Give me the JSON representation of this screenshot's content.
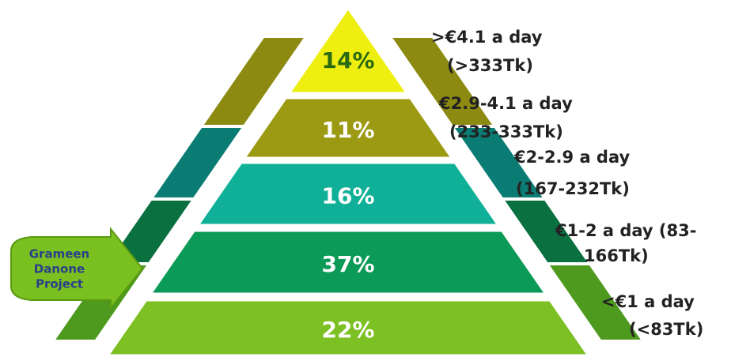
{
  "tiers": [
    {
      "percent": "14%",
      "income": [
        ">€4.1 a day",
        "(>333Tk)"
      ]
    },
    {
      "percent": "11%",
      "income": [
        "€2.9-4.1 a day",
        "(233-333Tk)"
      ]
    },
    {
      "percent": "16%",
      "income": [
        "€2-2.9 a day",
        "(167-232Tk)"
      ]
    },
    {
      "percent": "37%",
      "income": [
        "€1-2 a day   (83-",
        "166Tk)"
      ]
    },
    {
      "percent": "22%",
      "income": [
        "<€1 a day",
        "(<83Tk)"
      ]
    }
  ],
  "callout": {
    "lines": [
      "Grameen",
      "Danone",
      "Project"
    ]
  }
}
